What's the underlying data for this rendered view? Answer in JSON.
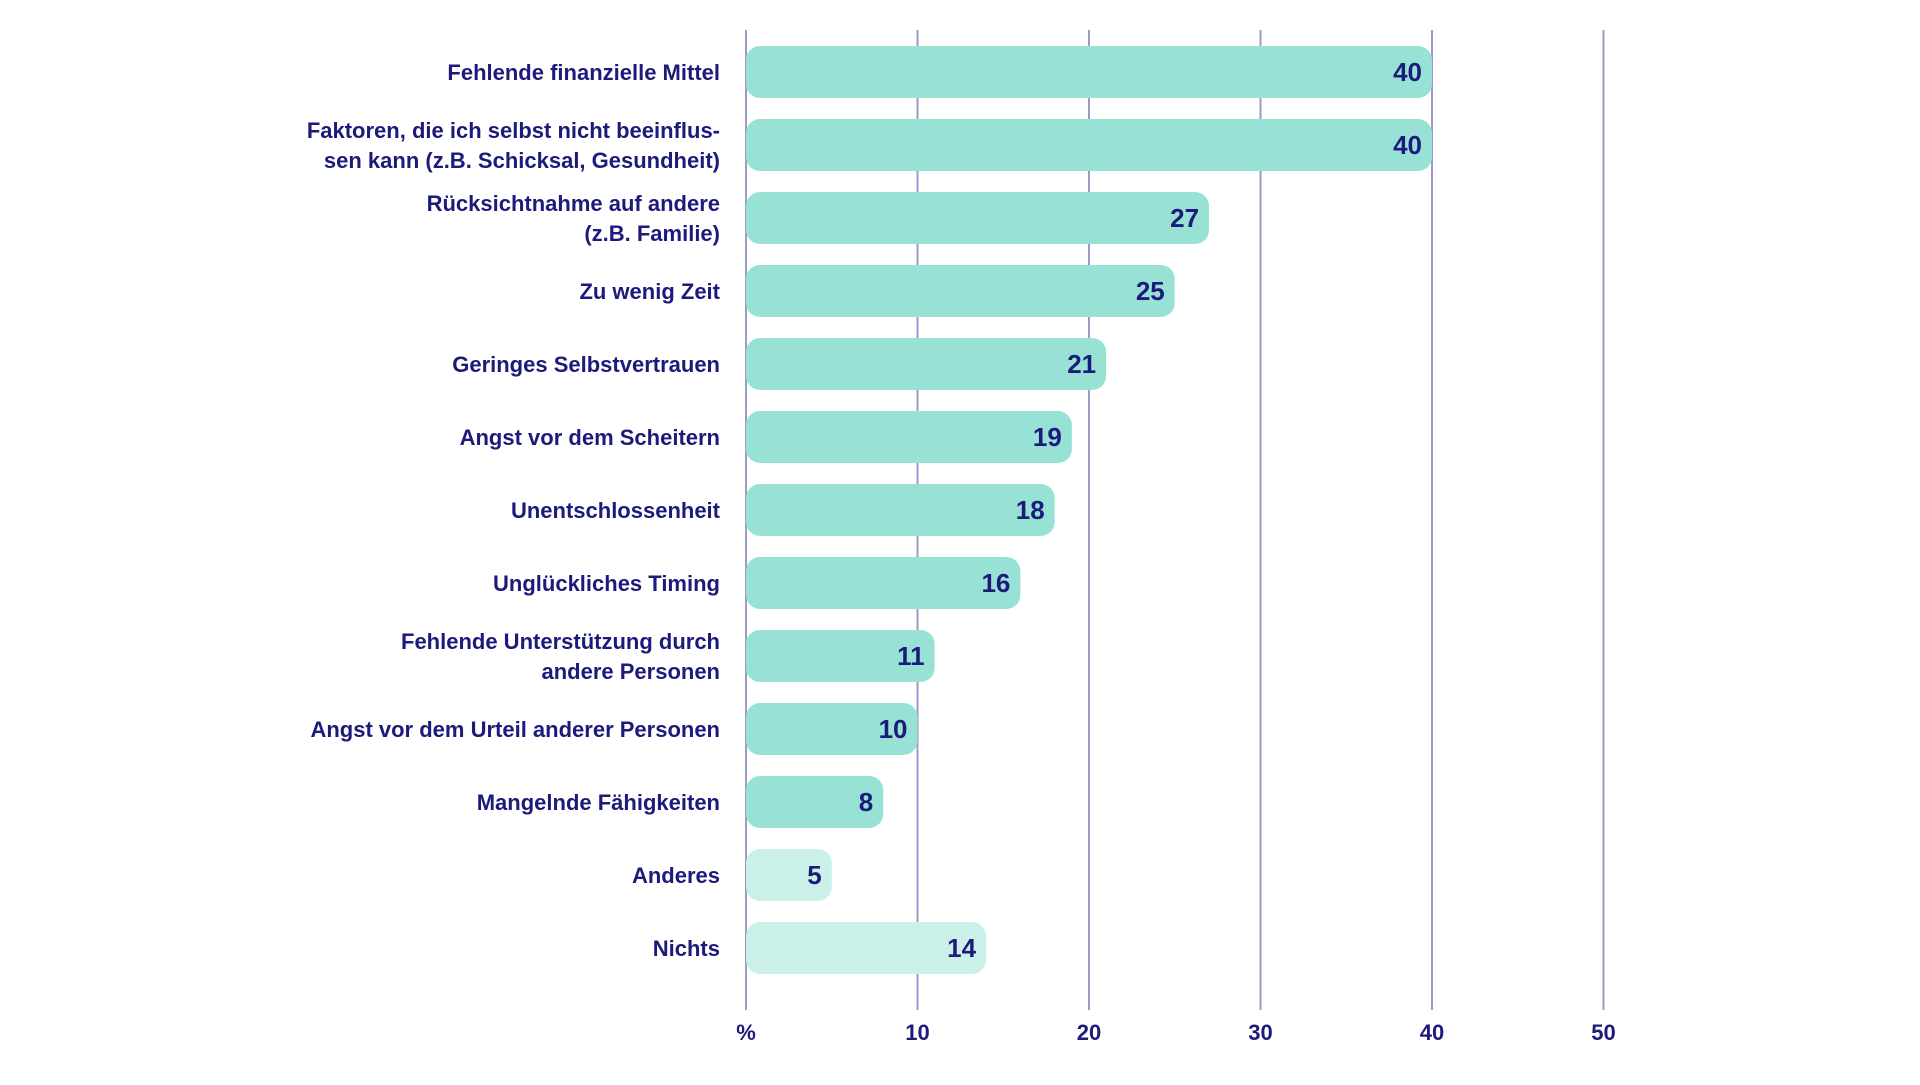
{
  "chart_data": {
    "type": "bar",
    "orientation": "horizontal",
    "categories": [
      [
        "Fehlende finanzielle Mittel"
      ],
      [
        "Faktoren, die ich selbst nicht beeinflus-",
        "sen kann (z.B. Schicksal, Gesundheit)"
      ],
      [
        "Rücksichtnahme auf andere",
        "(z.B. Familie)"
      ],
      [
        "Zu wenig Zeit"
      ],
      [
        "Geringes Selbstvertrauen"
      ],
      [
        "Angst vor dem Scheitern"
      ],
      [
        "Unentschlossenheit"
      ],
      [
        "Unglückliches Timing"
      ],
      [
        "Fehlende Unterstützung durch",
        "andere Personen"
      ],
      [
        "Angst vor dem Urteil anderer Personen"
      ],
      [
        "Mangelnde Fähigkeiten"
      ],
      [
        "Anderes"
      ],
      [
        "Nichts"
      ]
    ],
    "values": [
      40,
      40,
      27,
      25,
      21,
      19,
      18,
      16,
      11,
      10,
      8,
      5,
      14
    ],
    "value_labels": [
      "40",
      "40",
      "27",
      "25",
      "21",
      "19",
      "18",
      "16",
      "11",
      "10",
      "8",
      "5",
      "14"
    ],
    "bar_style": [
      "main",
      "main",
      "main",
      "main",
      "main",
      "main",
      "main",
      "main",
      "main",
      "main",
      "main",
      "light",
      "light"
    ],
    "xlim": [
      0,
      50
    ],
    "x_ticks": [
      0,
      10,
      20,
      30,
      40,
      50
    ],
    "x_tick_labels": [
      "%",
      "10",
      "20",
      "30",
      "40",
      "50"
    ],
    "grid": true,
    "colors": {
      "bar_main": "#98e2d5",
      "bar_light": "#cbf0ea",
      "text": "#1c1a7a",
      "grid": "#9b9bc8"
    }
  }
}
